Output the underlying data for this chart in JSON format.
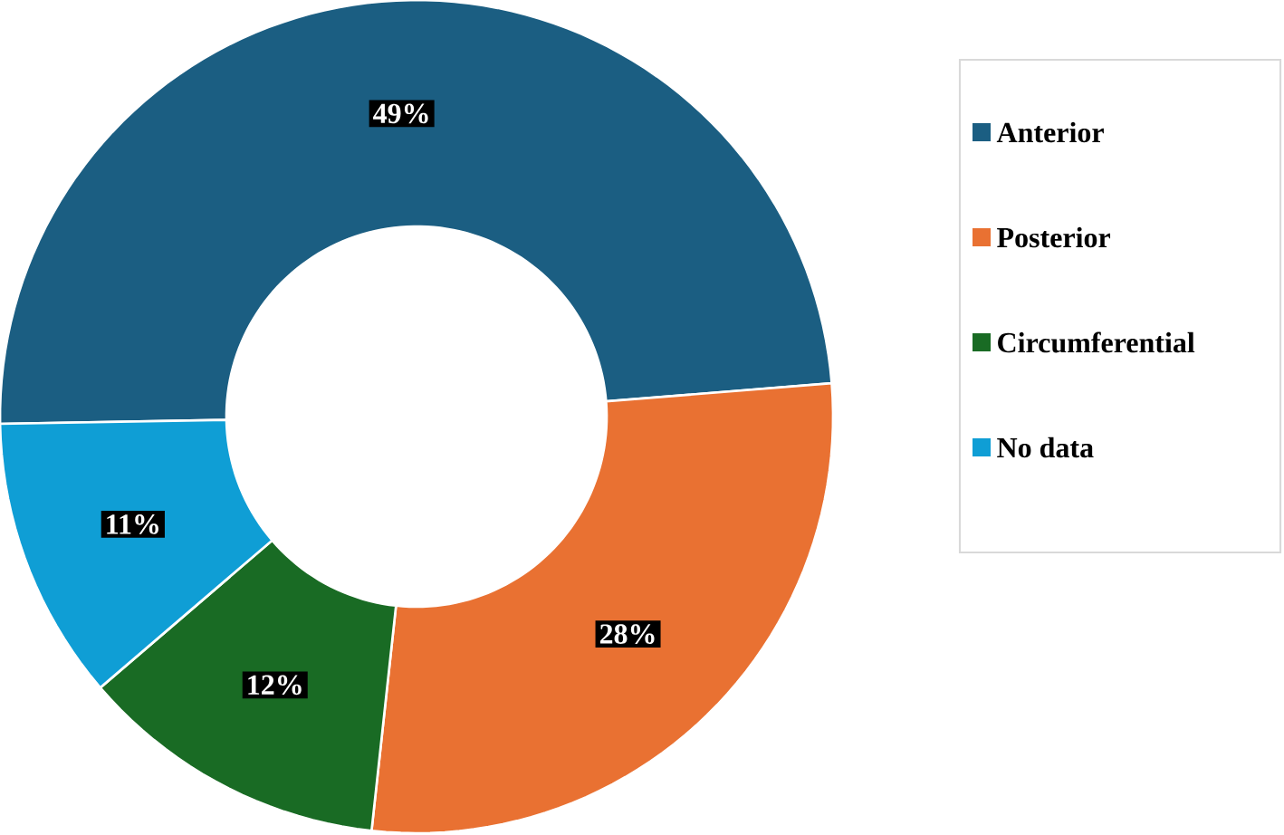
{
  "chart_data": {
    "type": "donut",
    "categories": [
      "Anterior",
      "Posterior",
      "Circumferential",
      "No data"
    ],
    "values": [
      49,
      28,
      12,
      11
    ],
    "value_labels": [
      "49%",
      "28%",
      "12%",
      "11%"
    ],
    "colors": [
      "#1b5e82",
      "#e97132",
      "#196b24",
      "#0f9ed5"
    ],
    "legend": "right"
  }
}
